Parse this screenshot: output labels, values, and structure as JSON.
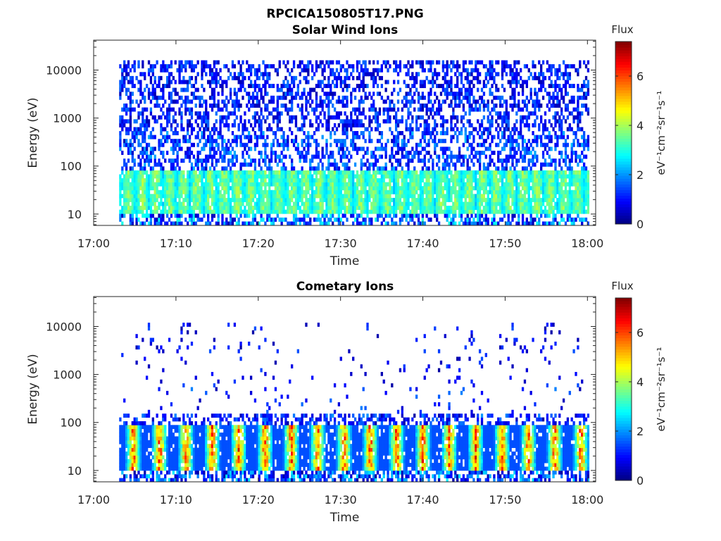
{
  "figure": {
    "title": "RPCICA150805T17.PNG"
  },
  "colorbar": {
    "label": "Flux",
    "unit_label": "eV⁻¹cm⁻²sr⁻¹s⁻¹",
    "ticks": [
      "0",
      "2",
      "4",
      "6"
    ],
    "range": [
      0,
      7.4
    ],
    "colormap": "jet"
  },
  "chart_data": [
    {
      "type": "heatmap",
      "title": "Solar Wind Ions",
      "xlabel": "Time",
      "ylabel": "Energy (eV)",
      "x_range_minutes": [
        0,
        61
      ],
      "x_ticks": [
        "17:00",
        "17:10",
        "17:20",
        "17:30",
        "17:40",
        "17:50",
        "18:00"
      ],
      "y_scale": "log",
      "y_range": [
        5.8,
        42000
      ],
      "y_ticks": [
        "10",
        "100",
        "1000",
        "10000"
      ],
      "data_start_minute": 3.1,
      "data_end_minute": 60.2,
      "max_energy_eV": 16000,
      "low_energy_band": {
        "energy_eV": [
          15,
          60
        ],
        "peak_flux": 4.2
      },
      "background_flux": [
        0.3,
        1.8
      ]
    },
    {
      "type": "heatmap",
      "title": "Cometary Ions",
      "xlabel": "Time",
      "ylabel": "Energy (eV)",
      "x_range_minutes": [
        0,
        61
      ],
      "x_ticks": [
        "17:00",
        "17:10",
        "17:20",
        "17:30",
        "17:40",
        "17:50",
        "18:00"
      ],
      "y_scale": "log",
      "y_range": [
        5.8,
        42000
      ],
      "y_ticks": [
        "10",
        "100",
        "1000",
        "10000"
      ],
      "data_start_minute": 3.1,
      "data_end_minute": 60.2,
      "max_energy_eV": 12000,
      "low_energy_band": {
        "energy_eV": [
          15,
          60
        ],
        "peak_flux": 7.0
      },
      "burst_period_minutes": 3.2,
      "background_flux": [
        0.2,
        1.5
      ]
    }
  ]
}
